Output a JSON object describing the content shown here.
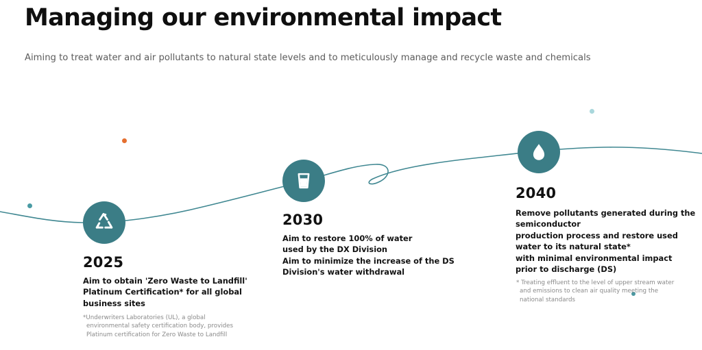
{
  "header": {
    "title": "Managing our environmental impact",
    "subtitle": "Aiming to treat water and air pollutants to natural state levels and to meticulously manage and recycle waste and chemicals"
  },
  "milestones": {
    "m2025": {
      "icon": "recycle-icon",
      "year": "2025",
      "description": [
        "Aim to obtain 'Zero Waste to Landfill'",
        "Platinum Certification* for all global",
        "business sites"
      ],
      "note": [
        "*Underwriters Laboratories (UL), a global",
        "environmental safety certification body, provides",
        "Platinum certification for Zero Waste to Landfill"
      ]
    },
    "m2030": {
      "icon": "water-glass-icon",
      "year": "2030",
      "description": [
        "Aim to restore 100% of water",
        "used by the DX Division",
        "Aim to minimize the increase of the DS",
        "Division's water withdrawal"
      ]
    },
    "m2040": {
      "icon": "water-drop-icon",
      "year": "2040",
      "description": [
        "Remove pollutants generated during the",
        "semiconductor",
        "production process and restore used",
        "water to its natural state*",
        "with minimal environmental impact",
        "prior to discharge (DS)"
      ],
      "note": [
        "* Treating effluent to the level of upper stream water",
        "and emissions to clean air quality meeting the",
        "national standards"
      ]
    }
  },
  "colors": {
    "accent": "#3b7d86",
    "curve": "#3f8791",
    "orange_dot": "#e56f2f",
    "light_teal_dot": "#a9d7dc"
  }
}
